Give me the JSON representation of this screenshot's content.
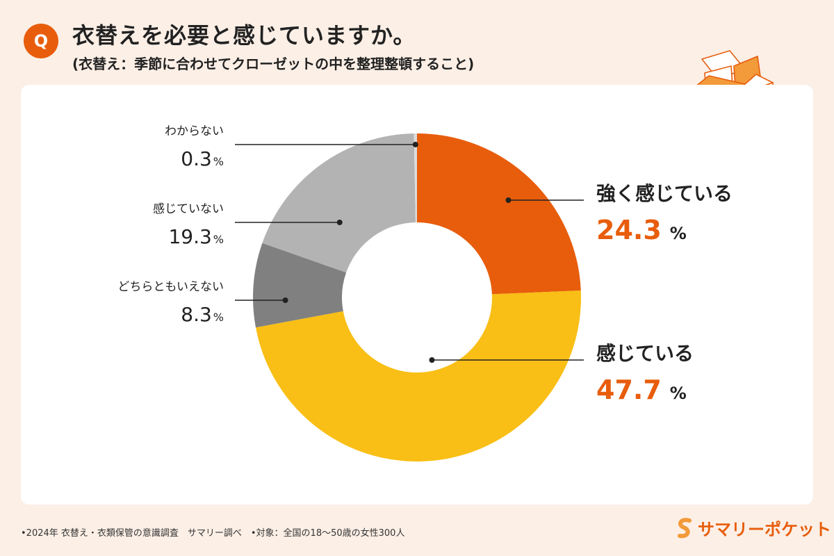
{
  "header": {
    "badge": "Q",
    "title": "衣替えを必要と感じていますか。",
    "subtitle": "(衣替え：季節に合わせてクローゼットの中を整理整頓すること)"
  },
  "chart_data": {
    "type": "pie",
    "donut": true,
    "title": "衣替えを必要と感じていますか。",
    "unit": "%",
    "slices": [
      {
        "label": "強く感じている",
        "value": 24.3,
        "color": "#e85d0c",
        "value_color": "#e85d0c",
        "side": "right"
      },
      {
        "label": "感じている",
        "value": 47.7,
        "color": "#f9bf16",
        "value_color": "#e85d0c",
        "side": "right"
      },
      {
        "label": "どちらともいえない",
        "value": 8.3,
        "color": "#808080",
        "value_color": "#222222",
        "side": "left"
      },
      {
        "label": "感じていない",
        "value": 19.3,
        "color": "#b3b3b3",
        "value_color": "#222222",
        "side": "left"
      },
      {
        "label": "わからない",
        "value": 0.3,
        "color": "#dcdcdc",
        "value_color": "#222222",
        "side": "left"
      }
    ]
  },
  "footer": {
    "note": "•2024年 衣替え・衣類保管の意識調査　サマリー調べ　•対象：全国の18〜50歳の女性300人",
    "brand": "サマリーポケット"
  },
  "colors": {
    "accent": "#e85d0c",
    "background": "#fcefe6",
    "card": "#ffffff"
  }
}
